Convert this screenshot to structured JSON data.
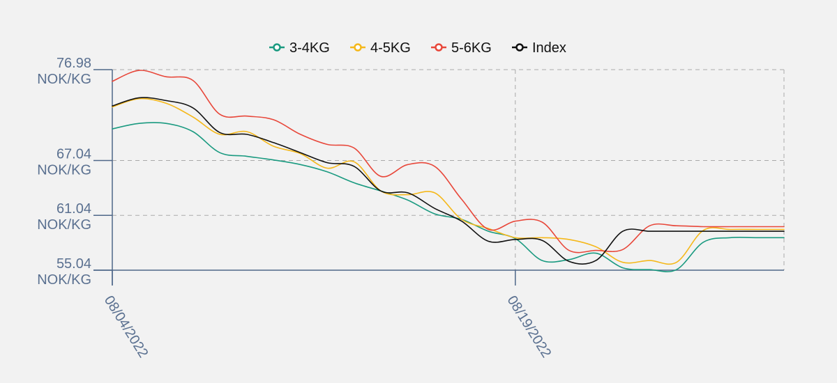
{
  "chart_data": {
    "type": "line",
    "title": "",
    "xlabel": "",
    "ylabel": "",
    "unit": "NOK/KG",
    "ylim": [
      55.04,
      76.98
    ],
    "yticks": [
      55.04,
      61.04,
      67.04,
      76.98
    ],
    "x_start": "08/04/2022",
    "x_end": "08/29/2022",
    "x": [
      "08/04/2022",
      "08/05/2022",
      "08/06/2022",
      "08/07/2022",
      "08/08/2022",
      "08/09/2022",
      "08/10/2022",
      "08/11/2022",
      "08/12/2022",
      "08/13/2022",
      "08/14/2022",
      "08/15/2022",
      "08/16/2022",
      "08/17/2022",
      "08/18/2022",
      "08/19/2022",
      "08/20/2022",
      "08/21/2022",
      "08/22/2022",
      "08/23/2022",
      "08/24/2022",
      "08/25/2022",
      "08/26/2022",
      "08/27/2022",
      "08/28/2022",
      "08/29/2022"
    ],
    "xticks": [
      "08/04/2022",
      "08/19/2022"
    ],
    "legend_position": "top-center",
    "grid": true,
    "series": [
      {
        "name": "3-4KG",
        "color": "#1a9a80",
        "values": [
          70.5,
          71.1,
          71.1,
          70.2,
          67.9,
          67.5,
          67.1,
          66.6,
          65.8,
          64.6,
          63.7,
          62.7,
          61.2,
          60.6,
          59.3,
          58.5,
          56.1,
          56.2,
          56.9,
          55.3,
          55.1,
          55.1,
          58.1,
          58.6,
          58.6,
          58.6
        ]
      },
      {
        "name": "4-5KG",
        "color": "#f5b81a",
        "values": [
          72.9,
          73.8,
          73.3,
          71.8,
          69.9,
          70.2,
          68.6,
          67.8,
          66.2,
          66.9,
          63.7,
          63.3,
          63.5,
          60.6,
          59.6,
          58.6,
          58.6,
          58.4,
          57.6,
          55.9,
          56.1,
          55.9,
          59.4,
          59.5,
          59.5,
          59.5
        ]
      },
      {
        "name": "5-6KG",
        "color": "#e8473a",
        "values": [
          75.7,
          76.9,
          76.2,
          75.8,
          72.1,
          71.9,
          71.5,
          69.9,
          68.8,
          68.4,
          65.3,
          66.6,
          66.4,
          62.8,
          59.5,
          60.4,
          60.3,
          57.2,
          57.2,
          57.3,
          59.9,
          59.9,
          59.8,
          59.8,
          59.8,
          59.8
        ]
      },
      {
        "name": "Index",
        "color": "#111111",
        "values": [
          73.0,
          73.9,
          73.6,
          72.8,
          70.1,
          69.9,
          69.0,
          67.9,
          66.8,
          66.4,
          63.7,
          63.5,
          61.8,
          60.4,
          58.2,
          58.4,
          58.3,
          56.0,
          56.1,
          59.3,
          59.3,
          59.3,
          59.3,
          59.3,
          59.3,
          59.3
        ]
      }
    ]
  }
}
